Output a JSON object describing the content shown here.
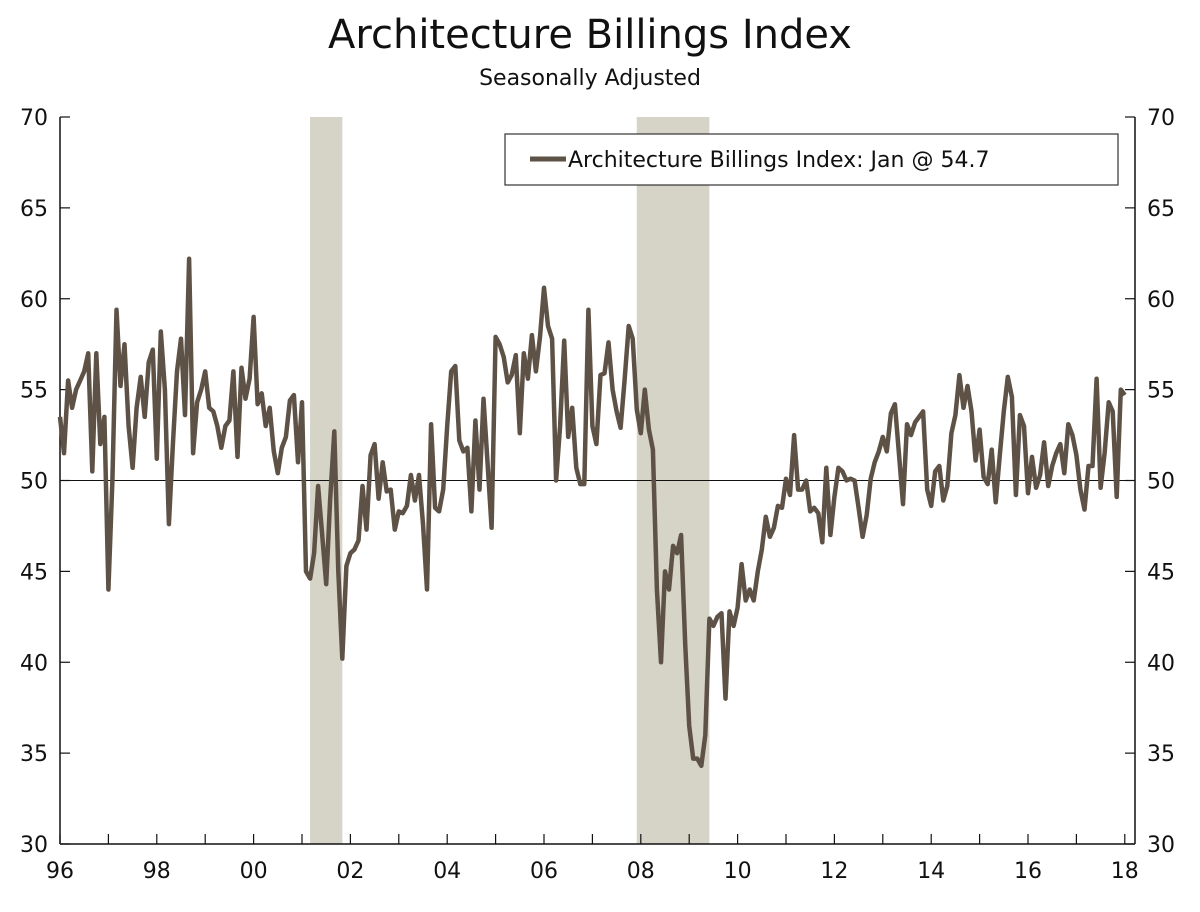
{
  "chart_data": {
    "type": "line",
    "title": "Architecture Billings Index",
    "subtitle": "Seasonally Adjusted",
    "xlabel": "",
    "ylabel": "",
    "ylim": [
      30,
      70
    ],
    "yticks": [
      "30",
      "35",
      "40",
      "45",
      "50",
      "55",
      "60",
      "65",
      "70"
    ],
    "xticks": [
      "96",
      "98",
      "00",
      "02",
      "04",
      "06",
      "08",
      "10",
      "12",
      "14",
      "16",
      "18"
    ],
    "x_start": "1996-01",
    "x_end": "2018-01",
    "frequency": "monthly",
    "reference_line": 50,
    "shaded_periods": [
      [
        "2001-03",
        "2001-11"
      ],
      [
        "2007-12",
        "2009-06"
      ]
    ],
    "legend_position": "top-right",
    "grid": false,
    "series": [
      {
        "name": "Architecture Billings Index: Jan @ 54.7",
        "color": "#5e5246",
        "values": [
          53.5,
          51.5,
          55.5,
          54,
          55,
          55.5,
          56,
          57,
          50.5,
          57,
          52,
          53.5,
          44,
          50,
          59.4,
          55.2,
          57.5,
          53,
          50.7,
          54,
          55.7,
          53.5,
          56.5,
          57.2,
          51.2,
          58.2,
          55,
          47.6,
          52,
          56,
          57.8,
          53.6,
          62.2,
          51.5,
          54.3,
          55,
          56,
          54,
          53.8,
          53,
          51.8,
          53,
          53.3,
          56,
          51.3,
          56.2,
          54.5,
          55.6,
          59,
          54.2,
          54.8,
          53,
          54,
          51.6,
          50.4,
          51.8,
          52.4,
          54.4,
          54.7,
          51,
          54.3,
          45,
          44.6,
          46,
          49.7,
          47,
          44.3,
          49,
          52.7,
          45,
          40.2,
          45.3,
          46,
          46.2,
          46.7,
          49.7,
          47.3,
          51.4,
          52,
          49,
          51,
          49.4,
          49.5,
          47.3,
          48.3,
          48.2,
          48.6,
          50.3,
          48.9,
          50.3,
          47.6,
          44,
          53.1,
          48.5,
          48.3,
          49.5,
          53,
          56,
          56.3,
          52.2,
          51.6,
          51.8,
          48.3,
          53.3,
          49.5,
          54.5,
          51,
          47.4,
          57.9,
          57.5,
          56.8,
          55.4,
          55.8,
          56.9,
          52.6,
          57,
          55.6,
          58,
          56,
          57.9,
          60.6,
          58.5,
          57.8,
          50,
          53,
          57.7,
          52.4,
          54,
          50.7,
          49.8,
          49.8,
          59.4,
          53,
          52,
          55.8,
          55.9,
          57.6,
          55,
          53.8,
          52.9,
          55.6,
          58.5,
          57.8,
          53.9,
          52.6,
          55,
          52.8,
          51.7,
          44,
          40,
          45,
          44,
          46.4,
          46,
          47,
          41,
          36.5,
          34.7,
          34.7,
          34.3,
          36,
          42.4,
          42,
          42.5,
          42.7,
          38,
          42.8,
          42,
          43,
          45.4,
          43.4,
          44,
          43.4,
          45,
          46.2,
          48,
          46.9,
          47.4,
          48.6,
          48.5,
          50.1,
          49.2,
          52.5,
          49.5,
          49.5,
          50,
          48.3,
          48.5,
          48.2,
          46.6,
          50.7,
          47,
          49.1,
          50.7,
          50.5,
          50,
          50.1,
          50,
          48.5,
          46.9,
          48.1,
          50.1,
          51,
          51.6,
          52.4,
          51.6,
          53.7,
          54.2,
          51.5,
          48.7,
          53.1,
          52.5,
          53.2,
          53.5,
          53.8,
          49.5,
          48.6,
          50.5,
          50.8,
          48.9,
          49.7,
          52.6,
          53.6,
          55.8,
          54,
          55.2,
          53.8,
          51.1,
          52.8,
          50.2,
          49.8,
          51.7,
          48.8,
          51.4,
          53.8,
          55.7,
          54.6,
          49.2,
          53.6,
          53,
          49.3,
          51.3,
          49.6,
          50.3,
          52.1,
          49.7,
          50.8,
          51.5,
          52,
          50.4,
          53.1,
          52.5,
          51.4,
          49.5,
          48.4,
          50.8,
          50.8,
          55.6,
          49.6,
          51.5,
          54.3,
          53.8,
          49.1,
          55,
          54.7
        ]
      }
    ]
  }
}
